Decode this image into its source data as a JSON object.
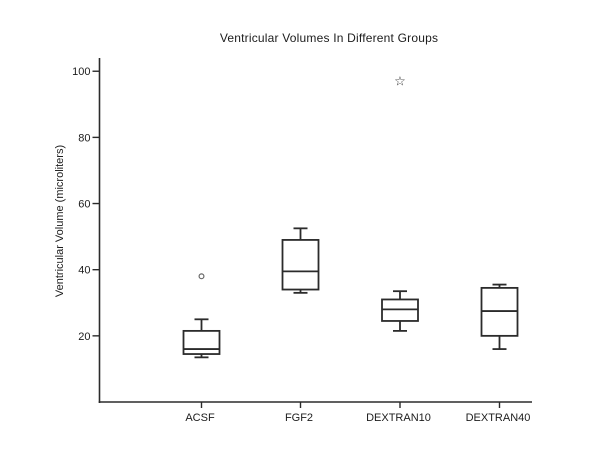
{
  "page": {
    "background_color": "#ffffff",
    "line_color": "#2b2b2b",
    "text_color": "#1c1c1c",
    "outlier_circle_color": "#6a6a6a"
  },
  "chart_data": {
    "type": "boxplot",
    "title": "Ventricular Volumes In Different Groups",
    "xlabel": "",
    "ylabel": "Ventricular Volume (microliters)",
    "categories": [
      "ACSF",
      "FGF2",
      "DEXTRAN10",
      "DEXTRAN40"
    ],
    "ylim": [
      0,
      104
    ],
    "yticks": [
      20,
      40,
      60,
      80,
      100
    ],
    "grid": false,
    "legend": false,
    "box_fill": "#ffffff",
    "groups": [
      {
        "label": "ACSF",
        "whisker_low": 13.5,
        "q1": 14.5,
        "median": 16,
        "q3": 21.5,
        "whisker_high": 25,
        "outliers": [
          {
            "value": 38,
            "marker": "circle"
          }
        ]
      },
      {
        "label": "FGF2",
        "whisker_low": 33,
        "q1": 34,
        "median": 39.5,
        "q3": 49,
        "whisker_high": 52.5,
        "outliers": []
      },
      {
        "label": "DEXTRAN10",
        "whisker_low": 21.5,
        "q1": 24.5,
        "median": 28,
        "q3": 31,
        "whisker_high": 33.5,
        "outliers": [
          {
            "value": 97,
            "marker": "star"
          }
        ]
      },
      {
        "label": "DEXTRAN40",
        "whisker_low": 16,
        "q1": 20,
        "median": 27.5,
        "q3": 34.5,
        "whisker_high": 35.5,
        "outliers": []
      }
    ]
  }
}
